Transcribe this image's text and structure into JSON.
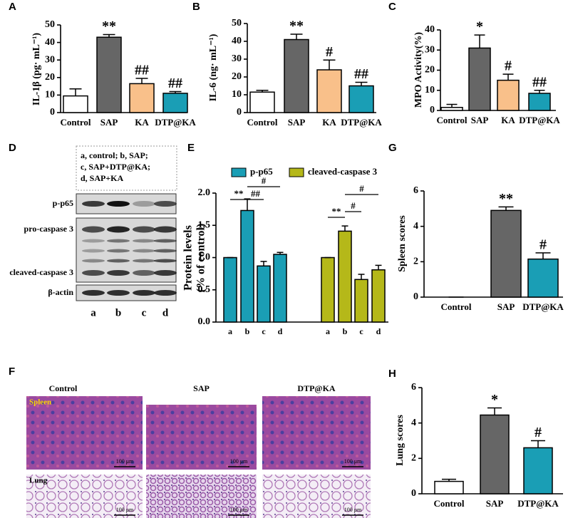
{
  "chart_data": [
    {
      "type": "bar",
      "panel_label": "A",
      "y_label": "IL-1β (pg· mL⁻¹)",
      "categories": [
        "Control",
        "SAP",
        "KA",
        "DTP@KA"
      ],
      "values": [
        9.5,
        43,
        16.5,
        11
      ],
      "errors": [
        4,
        1.5,
        3,
        1
      ],
      "annotations": [
        null,
        "**",
        "##",
        "##"
      ],
      "colors": [
        "#ffffff",
        "#666666",
        "#f9c08a",
        "#1a9eb5"
      ],
      "ylim": [
        0,
        50
      ],
      "yticks": [
        0,
        10,
        20,
        30,
        40,
        50
      ]
    },
    {
      "type": "bar",
      "panel_label": "B",
      "y_label": "IL-6 (ng· mL⁻¹)",
      "categories": [
        "Control",
        "SAP",
        "KA",
        "DTP@KA"
      ],
      "values": [
        11.5,
        41,
        24,
        15
      ],
      "errors": [
        1,
        3,
        5.5,
        2
      ],
      "annotations": [
        null,
        "**",
        "#",
        "##"
      ],
      "colors": [
        "#ffffff",
        "#666666",
        "#f9c08a",
        "#1a9eb5"
      ],
      "ylim": [
        0,
        50
      ],
      "yticks": [
        0,
        10,
        20,
        30,
        40,
        50
      ]
    },
    {
      "type": "bar",
      "panel_label": "C",
      "y_label": "MPO Activity(%)",
      "categories": [
        "Control",
        "SAP",
        "KA",
        "DTP@KA"
      ],
      "values": [
        1.5,
        31,
        15,
        8.5
      ],
      "errors": [
        1.5,
        6.5,
        3,
        1.5
      ],
      "annotations": [
        null,
        "*",
        "#",
        "##"
      ],
      "colors": [
        "#ffffff",
        "#666666",
        "#f9c08a",
        "#1a9eb5"
      ],
      "ylim": [
        0,
        40
      ],
      "yticks": [
        0,
        10,
        20,
        30,
        40
      ]
    },
    {
      "type": "grouped_bar",
      "panel_label": "E",
      "y_label": "Protein levels",
      "y_label_2": "(% of control)",
      "categories": [
        "a",
        "b",
        "c",
        "d"
      ],
      "series": [
        {
          "name": "p-p65",
          "color": "#1a9eb5",
          "values": [
            1.0,
            1.73,
            0.87,
            1.05
          ],
          "errors": [
            0,
            0.18,
            0.07,
            0.03
          ],
          "annotations": [
            "**",
            "##",
            "#"
          ]
        },
        {
          "name": "cleaved-caspase 3",
          "color": "#b5b819",
          "values": [
            1.0,
            1.41,
            0.66,
            0.81
          ],
          "errors": [
            0,
            0.08,
            0.08,
            0.07
          ],
          "annotations": [
            "**",
            "#",
            "#"
          ]
        }
      ],
      "ylim": [
        0,
        2
      ],
      "yticks": [
        {
          "value": 0,
          "label": "0.0"
        },
        0.5,
        {
          "value": 1,
          "label": "1.0"
        },
        1.5,
        {
          "value": 2,
          "label": "2.0"
        }
      ]
    },
    {
      "type": "bar",
      "panel_label": "G",
      "y_label": "Spleen scores",
      "categories": [
        "Control",
        "SAP",
        "DTP@KA"
      ],
      "values": [
        0,
        4.9,
        2.15
      ],
      "errors": [
        0,
        0.2,
        0.35
      ],
      "annotations": [
        null,
        "**",
        "#"
      ],
      "colors": [
        "#ffffff",
        "#666666",
        "#1a9eb5"
      ],
      "ylim": [
        0,
        6
      ],
      "yticks": [
        0,
        2,
        4,
        6
      ]
    },
    {
      "type": "bar",
      "panel_label": "H",
      "y_label": "Lung scores",
      "categories": [
        "Control",
        "SAP",
        "DTP@KA"
      ],
      "values": [
        0.7,
        4.45,
        2.6
      ],
      "errors": [
        0.12,
        0.4,
        0.4
      ],
      "annotations": [
        null,
        "*",
        "#"
      ],
      "colors": [
        "#ffffff",
        "#666666",
        "#1a9eb5"
      ],
      "ylim": [
        0,
        6
      ],
      "yticks": [
        0,
        2,
        4,
        6
      ]
    }
  ],
  "blot": {
    "panel_label": "D",
    "legend": [
      "a, control;  b, SAP;",
      "c, SAP+DTP@KA;",
      "d, SAP+KA"
    ],
    "rows": [
      "p-p65",
      "pro-caspase 3",
      "cleaved-caspase 3",
      "β-actin"
    ],
    "lanes": [
      "a",
      "b",
      "c",
      "d"
    ]
  },
  "histology": {
    "panel_label": "F",
    "columns": [
      "Control",
      "SAP",
      "DTP@KA"
    ],
    "rows": [
      "Spleen",
      "Lung"
    ],
    "scale_bar": "100 μm"
  }
}
